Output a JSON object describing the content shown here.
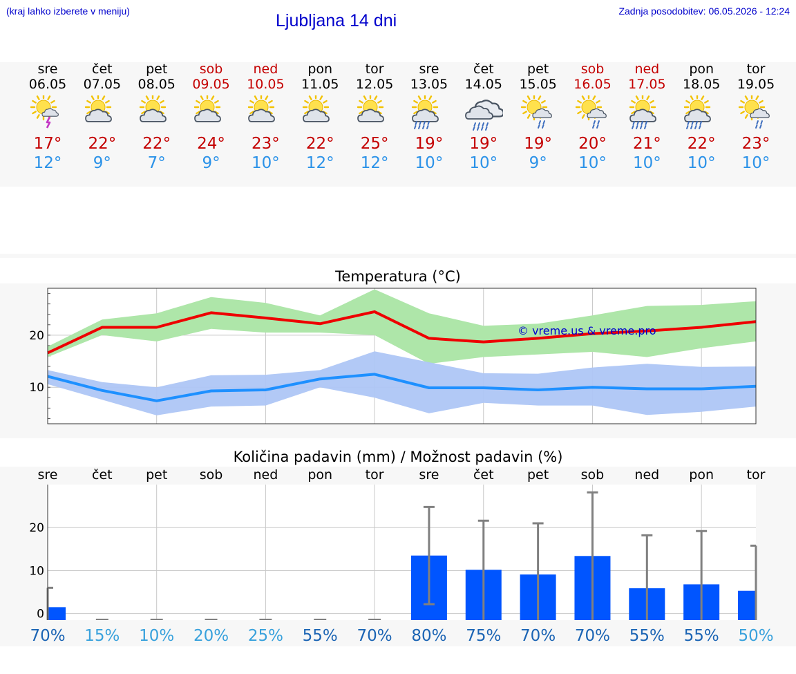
{
  "header": {
    "hint": "(kraj lahko izberete v meniju)",
    "title": "Ljubljana 14 dni",
    "updated": "Zadnja posodobitev: 06.05.2026 - 12:24"
  },
  "colors": {
    "link": "#0000cc",
    "weekend": "#c40000",
    "weekday": "#000000",
    "max_temp": "#c40000",
    "min_temp": "#2b92e8",
    "max_line": "#ee0000",
    "max_band": "#aee6a9",
    "min_line": "#1e90ff",
    "min_band": "#aec6f5",
    "precip_bar": "#0055ff",
    "prob_text": "#1565c0"
  },
  "days": [
    {
      "name": "sre",
      "date": "06.05",
      "weekend": false,
      "icon": "sun-cloud-thunder-icon",
      "tmax": "17°",
      "tmin": "12°"
    },
    {
      "name": "čet",
      "date": "07.05",
      "weekend": false,
      "icon": "sun-cloud-icon",
      "tmax": "22°",
      "tmin": "9°"
    },
    {
      "name": "pet",
      "date": "08.05",
      "weekend": false,
      "icon": "sun-cloud-icon",
      "tmax": "22°",
      "tmin": "7°"
    },
    {
      "name": "sob",
      "date": "09.05",
      "weekend": true,
      "icon": "sun-cloud-icon",
      "tmax": "24°",
      "tmin": "9°"
    },
    {
      "name": "ned",
      "date": "10.05",
      "weekend": true,
      "icon": "sun-cloud-icon",
      "tmax": "23°",
      "tmin": "10°"
    },
    {
      "name": "pon",
      "date": "11.05",
      "weekend": false,
      "icon": "sun-cloud-icon",
      "tmax": "22°",
      "tmin": "12°"
    },
    {
      "name": "tor",
      "date": "12.05",
      "weekend": false,
      "icon": "sun-cloud-icon",
      "tmax": "25°",
      "tmin": "12°"
    },
    {
      "name": "sre",
      "date": "13.05",
      "weekend": false,
      "icon": "sun-cloud-rain-icon",
      "tmax": "19°",
      "tmin": "10°"
    },
    {
      "name": "čet",
      "date": "14.05",
      "weekend": false,
      "icon": "cloud-rain-icon",
      "tmax": "19°",
      "tmin": "10°"
    },
    {
      "name": "pet",
      "date": "15.05",
      "weekend": false,
      "icon": "sun-cloud-light-rain-icon",
      "tmax": "19°",
      "tmin": "9°"
    },
    {
      "name": "sob",
      "date": "16.05",
      "weekend": true,
      "icon": "sun-cloud-light-rain-icon",
      "tmax": "20°",
      "tmin": "10°"
    },
    {
      "name": "ned",
      "date": "17.05",
      "weekend": true,
      "icon": "sun-cloud-rain-icon",
      "tmax": "21°",
      "tmin": "10°"
    },
    {
      "name": "pon",
      "date": "18.05",
      "weekend": false,
      "icon": "sun-cloud-rain-icon",
      "tmax": "22°",
      "tmin": "10°"
    },
    {
      "name": "tor",
      "date": "19.05",
      "weekend": false,
      "icon": "sun-cloud-light-rain-icon",
      "tmax": "23°",
      "tmin": "10°"
    }
  ],
  "chart_data": [
    {
      "type": "line",
      "title": "Temperatura (°C)",
      "watermark": "© vreme.us & vreme.pro",
      "ylim": [
        3,
        29
      ],
      "yticks": [
        10,
        20
      ],
      "grid": true,
      "x": [
        "06.05",
        "07.05",
        "08.05",
        "09.05",
        "10.05",
        "11.05",
        "12.05",
        "13.05",
        "14.05",
        "15.05",
        "16.05",
        "17.05",
        "18.05",
        "19.05"
      ],
      "series": [
        {
          "role": "max",
          "values": [
            16.6,
            21.5,
            21.5,
            24.3,
            23.3,
            22.2,
            24.5,
            19.4,
            18.7,
            19.4,
            20.3,
            20.8,
            21.5,
            22.6
          ],
          "band_low": [
            15.8,
            20.0,
            18.8,
            21.2,
            20.5,
            20.5,
            20.0,
            14.5,
            15.8,
            16.3,
            16.8,
            15.8,
            17.5,
            18.8
          ],
          "band_high": [
            17.8,
            23.0,
            24.2,
            27.3,
            26.2,
            23.8,
            28.8,
            24.2,
            21.8,
            22.2,
            23.8,
            25.6,
            25.8,
            26.5
          ]
        },
        {
          "role": "min",
          "values": [
            12.1,
            9.4,
            7.4,
            9.3,
            9.5,
            11.6,
            12.5,
            9.9,
            9.9,
            9.5,
            10.0,
            9.7,
            9.7,
            10.2
          ],
          "band_low": [
            10.6,
            7.6,
            4.6,
            6.3,
            6.5,
            10.0,
            8.0,
            5.0,
            7.0,
            6.5,
            6.5,
            4.7,
            5.3,
            6.3
          ],
          "band_high": [
            13.3,
            11.0,
            10.0,
            12.3,
            12.4,
            13.3,
            16.9,
            14.8,
            12.7,
            12.6,
            13.8,
            14.5,
            13.9,
            14.0
          ]
        }
      ]
    },
    {
      "type": "bar",
      "title": "Količina padavin (mm) / Možnost padavin (%)",
      "categories": [
        "sre",
        "čet",
        "pet",
        "sob",
        "ned",
        "pon",
        "tor",
        "sre",
        "čet",
        "pet",
        "sob",
        "ned",
        "pon",
        "tor"
      ],
      "ylim": [
        -1.5,
        30
      ],
      "yticks": [
        0,
        10,
        20
      ],
      "grid": true,
      "values": [
        1.5,
        0,
        0,
        0,
        0,
        0,
        0,
        13.5,
        10.2,
        9.1,
        13.4,
        5.9,
        6.8,
        5.3
      ],
      "error_low": [
        0,
        0,
        0,
        0,
        0,
        0,
        0,
        2.2,
        0,
        0,
        0,
        0,
        0,
        0
      ],
      "error_high": [
        6.0,
        0,
        0,
        0,
        0,
        0,
        0,
        24.8,
        21.6,
        21.0,
        28.2,
        18.2,
        19.2,
        15.8
      ],
      "probability": [
        "70%",
        "15%",
        "10%",
        "20%",
        "25%",
        "55%",
        "70%",
        "80%",
        "75%",
        "70%",
        "70%",
        "55%",
        "55%",
        "50%"
      ],
      "probability_values": [
        70,
        15,
        10,
        20,
        25,
        55,
        70,
        80,
        75,
        70,
        70,
        55,
        55,
        50
      ]
    }
  ]
}
